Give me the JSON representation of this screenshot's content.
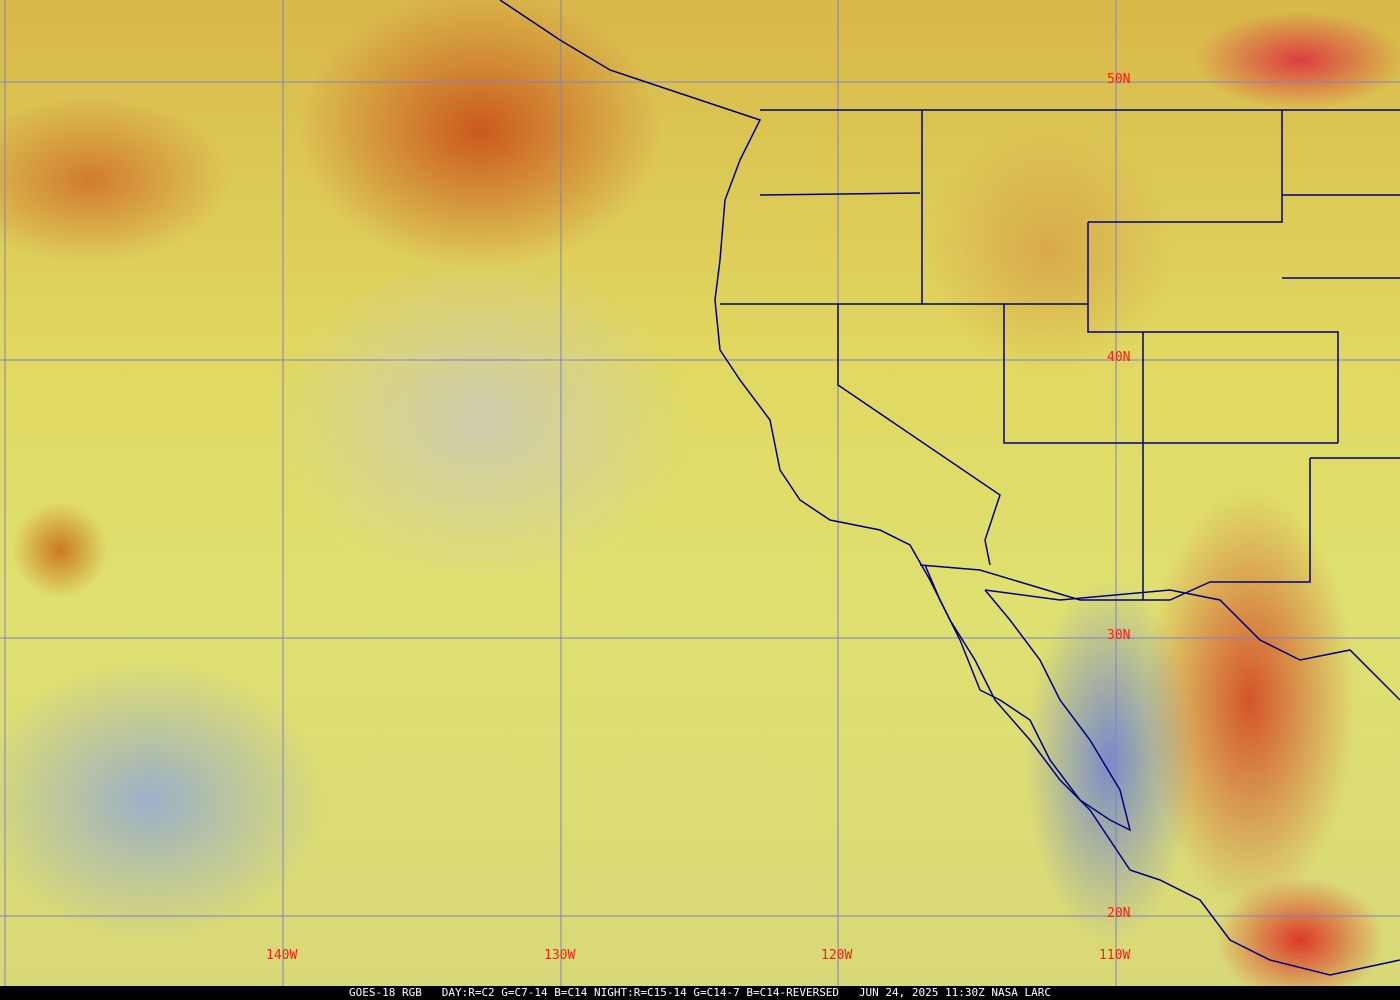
{
  "map": {
    "type": "satellite RGB composite",
    "grid_color": "#8080c8",
    "border_color": "#000080",
    "label_color": "#ff1a1a",
    "latitude_labels": [
      "50N",
      "40N",
      "30N",
      "20N"
    ],
    "longitude_labels": [
      "140W",
      "130W",
      "120W",
      "110W"
    ]
  },
  "caption": {
    "satellite": "GOES-18 RGB",
    "recipe": "DAY:R=C2 G=C7-14 B=C14 NIGHT:R=C15-14 G=C14-7 B=C14-REVERSED",
    "timestamp": "JUN 24, 2025 11:30Z",
    "credit": "NASA LARC"
  }
}
